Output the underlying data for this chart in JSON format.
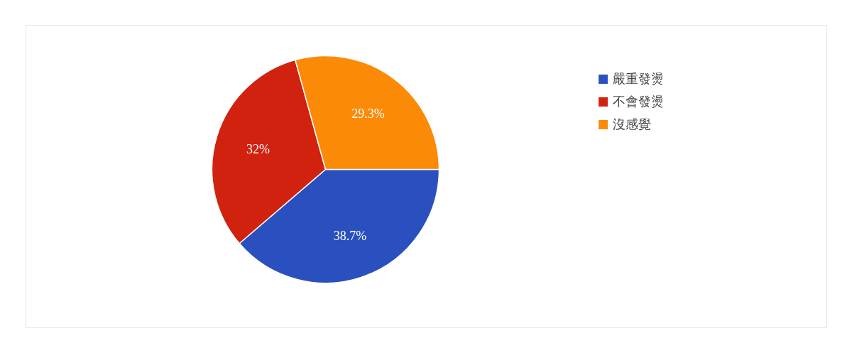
{
  "chart_data": {
    "type": "pie",
    "categories": [
      "嚴重發燙",
      "不會發燙",
      "沒感覺"
    ],
    "values": [
      38.7,
      32,
      29.3
    ],
    "colors": [
      "#2a50c0",
      "#d12210",
      "#fb8a06"
    ],
    "value_labels": [
      "38.7%",
      "32%",
      "29.3%"
    ],
    "legend": "top right"
  }
}
